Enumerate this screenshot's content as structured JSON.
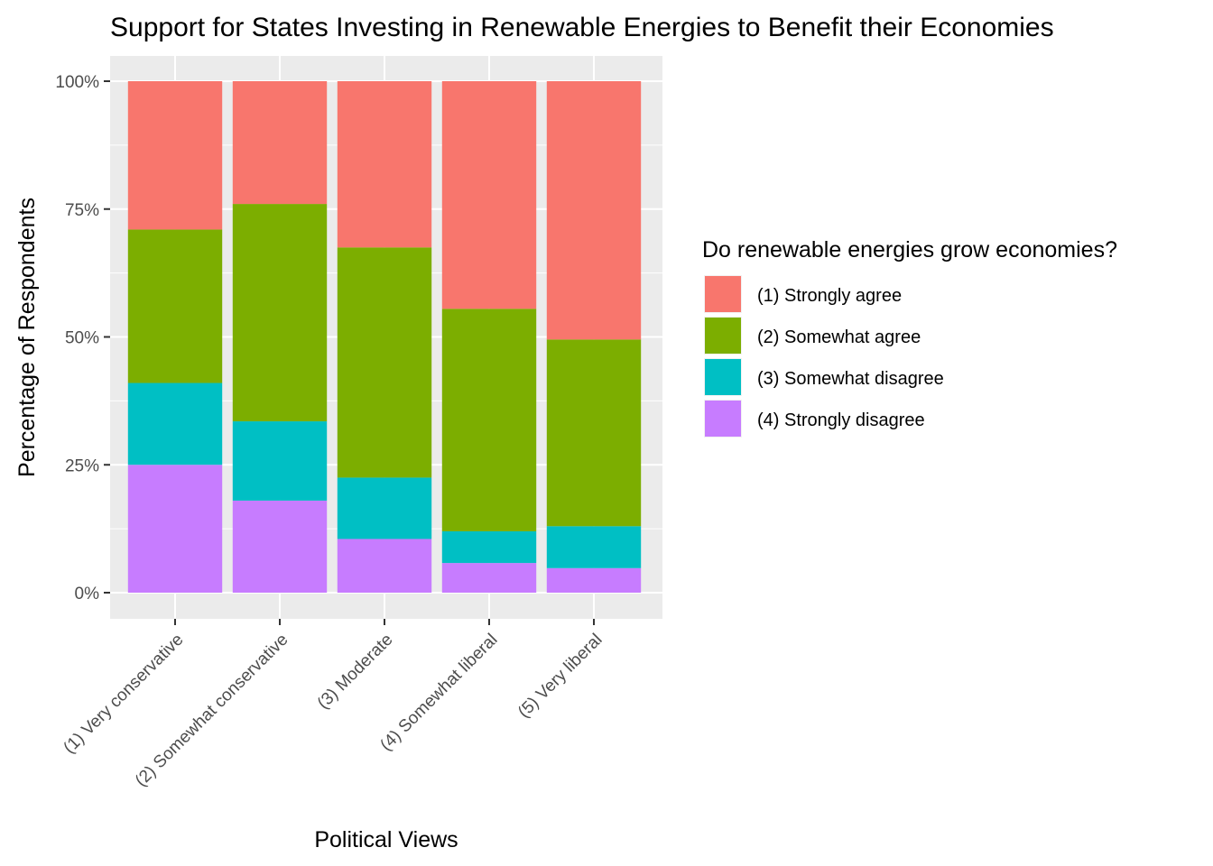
{
  "chart_data": {
    "type": "bar",
    "stacked": true,
    "percent_scale": true,
    "title": "Support for States Investing in Renewable Energies to Benefit their Economies",
    "xlabel": "Political Views",
    "ylabel": "Percentage of Respondents",
    "ylim": [
      0,
      1
    ],
    "y_ticks": [
      0,
      0.25,
      0.5,
      0.75,
      1.0
    ],
    "y_tick_labels": [
      "0%",
      "25%",
      "50%",
      "75%",
      "100%"
    ],
    "grid": true,
    "legend_position": "right",
    "legend_title": "Do renewable energies grow economies?",
    "categories": [
      "(1) Very conservative",
      "(2) Somewhat conservative",
      "(3) Moderate",
      "(4) Somewhat liberal",
      "(5) Very liberal"
    ],
    "series": [
      {
        "name": "(1) Strongly agree",
        "color": "#F8766D",
        "values": [
          0.29,
          0.24,
          0.325,
          0.445,
          0.505
        ]
      },
      {
        "name": "(2) Somewhat agree",
        "color": "#7CAE00",
        "values": [
          0.3,
          0.425,
          0.45,
          0.435,
          0.365
        ]
      },
      {
        "name": "(3) Somewhat disagree",
        "color": "#00BFC4",
        "values": [
          0.16,
          0.155,
          0.12,
          0.062,
          0.082
        ]
      },
      {
        "name": "(4) Strongly disagree",
        "color": "#C77CFF",
        "values": [
          0.25,
          0.18,
          0.105,
          0.058,
          0.048
        ]
      }
    ]
  },
  "colors": {
    "panel_background": "#EBEBEB",
    "grid_major": "#FFFFFF"
  }
}
